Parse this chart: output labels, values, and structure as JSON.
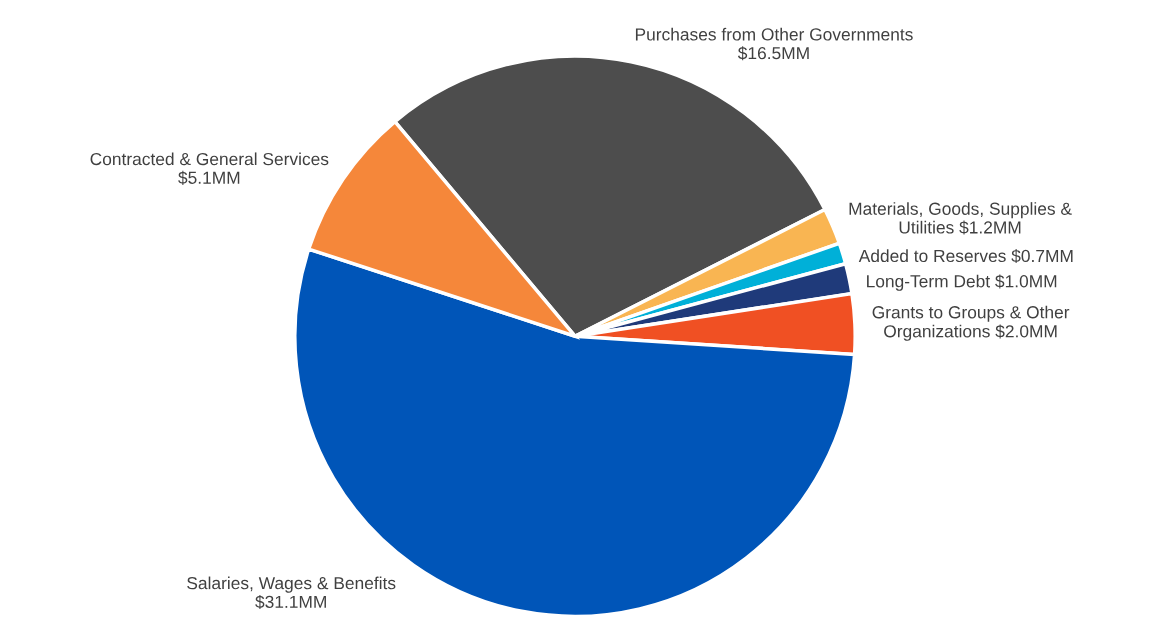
{
  "chart_data": {
    "type": "pie",
    "categories": [
      "Purchases from Other Governments",
      "Materials, Goods, Supplies & Utilities",
      "Added to Reserves",
      "Long-Term Debt",
      "Grants to Groups & Other Organizations",
      "Salaries, Wages & Benefits",
      "Contracted & General Services"
    ],
    "values": [
      16.5,
      1.2,
      0.7,
      1.0,
      2.0,
      31.1,
      5.1
    ],
    "value_labels": [
      "$16.5MM",
      "$1.2MM",
      "$0.7MM",
      "$1.0MM",
      "$2.0MM",
      "$31.1MM",
      "$5.1MM"
    ],
    "colors": [
      "#4d4d4d",
      "#f9b552",
      "#00b0d8",
      "#1f3a7a",
      "#f05023",
      "#0055b8",
      "#f5873a"
    ]
  }
}
